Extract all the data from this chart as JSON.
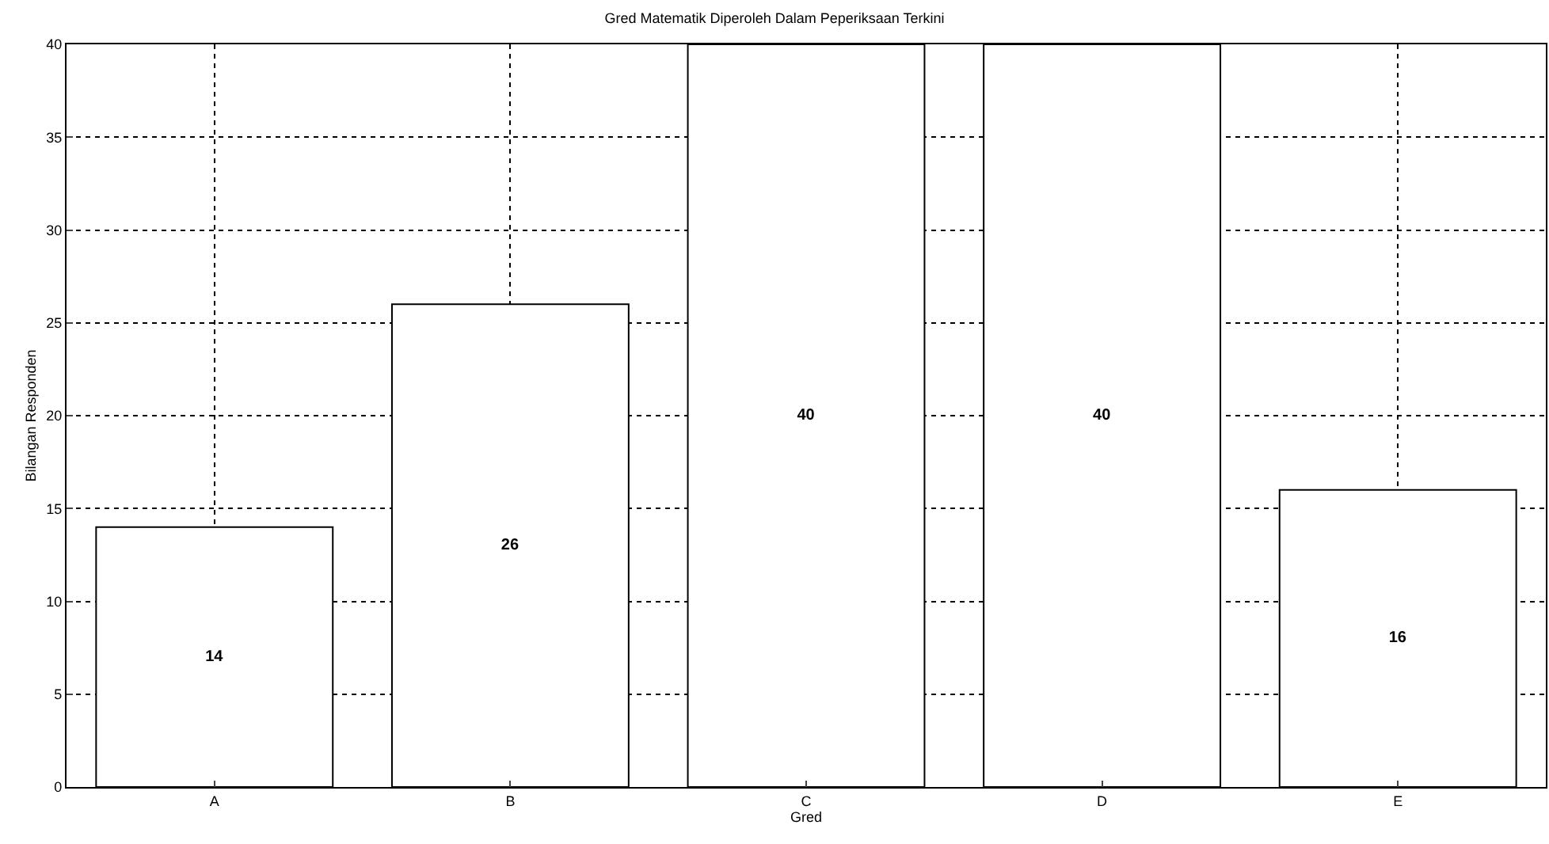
{
  "chart_data": {
    "type": "bar",
    "title": "Gred Matematik Diperoleh Dalam Peperiksaan Terkini",
    "xlabel": "Gred",
    "ylabel": "Bilangan Responden",
    "categories": [
      "A",
      "B",
      "C",
      "D",
      "E"
    ],
    "values": [
      14,
      26,
      40,
      40,
      16
    ],
    "color": "#ffffff",
    "ylim": [
      0,
      40
    ],
    "yticks": [
      0,
      5,
      10,
      15,
      20,
      25,
      30,
      35,
      40
    ],
    "grid": true,
    "data_labels": true
  }
}
